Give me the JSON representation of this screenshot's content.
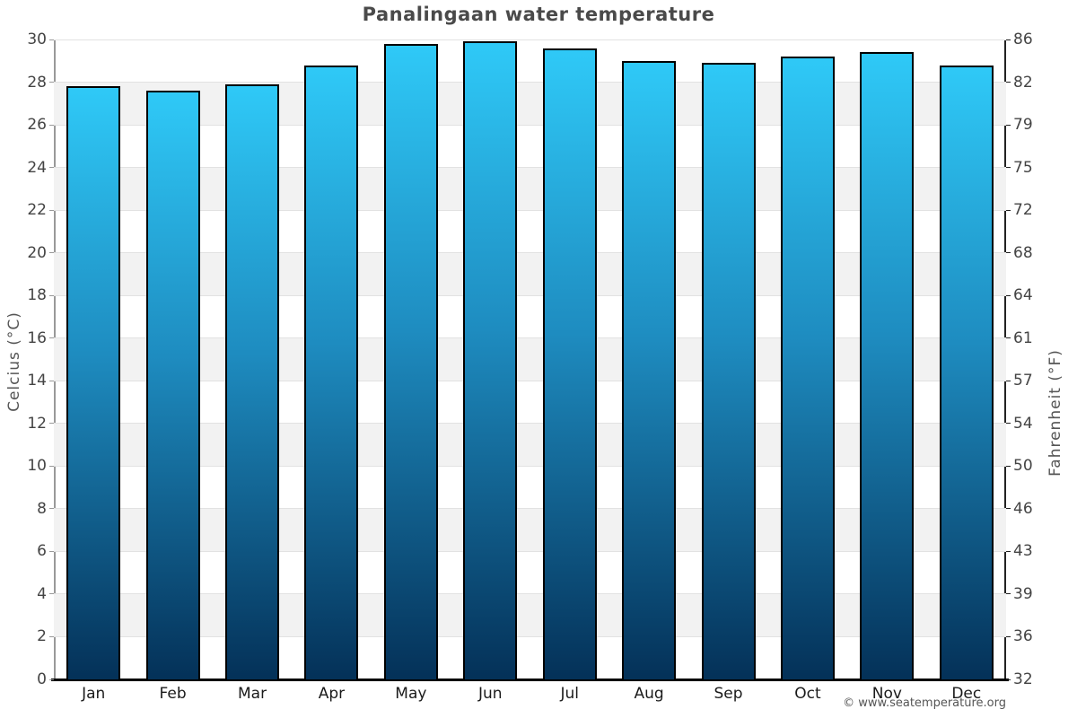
{
  "title": "Panalingaan water temperature",
  "copyright": "© www.seatemperature.org",
  "chart_data": {
    "type": "bar",
    "title": "Panalingaan water temperature",
    "categories": [
      "Jan",
      "Feb",
      "Mar",
      "Apr",
      "May",
      "Jun",
      "Jul",
      "Aug",
      "Sep",
      "Oct",
      "Nov",
      "Dec"
    ],
    "values": [
      27.8,
      27.6,
      27.9,
      28.8,
      29.8,
      29.9,
      29.6,
      29.0,
      28.9,
      29.2,
      29.4,
      28.8
    ],
    "unit": "°C",
    "xlabel": "",
    "ylabel_left": "Celcius (°C)",
    "ylabel_right": "Fahrenheit (°F)",
    "ylim_celsius": [
      0,
      30
    ],
    "ytick_step_celsius": 2,
    "yticks_celsius": [
      0,
      2,
      4,
      6,
      8,
      10,
      12,
      14,
      16,
      18,
      20,
      22,
      24,
      26,
      28,
      30
    ],
    "yticks_fahrenheit": [
      32,
      36,
      39,
      43,
      46,
      50,
      54,
      57,
      61,
      64,
      68,
      72,
      75,
      79,
      82,
      86
    ],
    "legend": "none",
    "grid": "horizontal gridlines every 2°C with alternating shaded bands",
    "colors": {
      "bar_gradient_top": "#2fc9f7",
      "bar_gradient_mid": "#1e8cc0",
      "bar_gradient_bottom": "#043158",
      "bar_border": "#000000",
      "band_shade": "#f2f2f2",
      "gridline": "#e2e2e2",
      "axis_line_left": "#999999",
      "axis_line_right": "#222222",
      "axis_line_bottom": "#000000",
      "tick_text": "#444444",
      "month_text": "#1a1a1a",
      "title_text": "#4a4a4a",
      "copyright_text": "#555555"
    }
  }
}
